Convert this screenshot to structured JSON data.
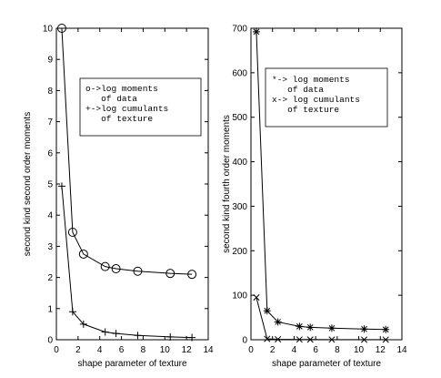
{
  "chart_data": [
    {
      "type": "line",
      "xlabel": "shape parameter of texture",
      "ylabel": "second kind second order moments",
      "xlim": [
        0,
        14
      ],
      "ylim": [
        0,
        10
      ],
      "xticks": [
        "0",
        "2",
        "4",
        "6",
        "8",
        "10",
        "12",
        "14"
      ],
      "yticks": [
        "0",
        "1",
        "2",
        "3",
        "4",
        "5",
        "6",
        "7",
        "8",
        "9",
        "10"
      ],
      "legend_lines": [
        "o->log moments",
        "   of data",
        "+->log cumulants",
        "   of texture"
      ],
      "legend_position": "upper-middle",
      "series": [
        {
          "marker": "circle",
          "x": [
            0.5,
            1.5,
            2.5,
            4.5,
            5.5,
            7.5,
            10.5,
            12.5
          ],
          "values": [
            10.0,
            3.45,
            2.75,
            2.35,
            2.28,
            2.2,
            2.13,
            2.1
          ]
        },
        {
          "marker": "plus",
          "x": [
            0.5,
            1.5,
            2.5,
            4.5,
            5.5,
            7.5,
            10.5,
            12.5
          ],
          "values": [
            4.93,
            0.9,
            0.5,
            0.25,
            0.2,
            0.14,
            0.09,
            0.07
          ]
        }
      ]
    },
    {
      "type": "line",
      "xlabel": "shape parameter of texture",
      "ylabel": "second kind fourth order moments",
      "xlim": [
        0,
        14
      ],
      "ylim": [
        0,
        700
      ],
      "xticks": [
        "0",
        "2",
        "4",
        "6",
        "8",
        "10",
        "12",
        "14"
      ],
      "yticks": [
        "0",
        "100",
        "200",
        "300",
        "400",
        "500",
        "600",
        "700"
      ],
      "legend_lines": [
        "*-> log moments",
        "   of data",
        "x-> log cumulants",
        "   of texture"
      ],
      "legend_position": "upper-middle",
      "series": [
        {
          "marker": "asterisk",
          "x": [
            0.5,
            1.5,
            2.5,
            4.5,
            5.5,
            7.5,
            10.5,
            12.5
          ],
          "values": [
            692,
            65,
            40,
            30,
            28,
            26,
            24,
            23
          ]
        },
        {
          "marker": "x",
          "x": [
            0.5,
            1.5,
            2.5,
            4.5,
            5.5,
            7.5,
            10.5,
            12.5
          ],
          "values": [
            95,
            2,
            1,
            0.5,
            0.4,
            0.3,
            0.2,
            0.2
          ]
        }
      ]
    }
  ]
}
